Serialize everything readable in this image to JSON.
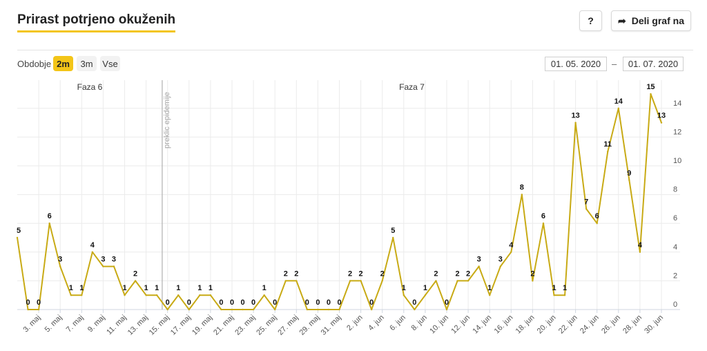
{
  "header": {
    "title": "Prirast potrjeno okuženih",
    "help_label": "?",
    "share_label": "Deli graf na"
  },
  "controls": {
    "period_label": "Obdobje",
    "ranges": [
      "2m",
      "3m",
      "Vse"
    ],
    "active_range": "2m",
    "date_from": "01. 05. 2020",
    "date_separator": "–",
    "date_to": "01. 07. 2020"
  },
  "colors": {
    "series": "#c8aa14",
    "accent": "#f3c518",
    "grid": "#ebebeb",
    "annotation_line": "#b0b0b0"
  },
  "chart_data": {
    "type": "line",
    "title": "",
    "xlabel": "",
    "ylabel": "",
    "ylim": [
      0,
      16
    ],
    "yticks": [
      0,
      2,
      4,
      6,
      8,
      10,
      12,
      14
    ],
    "grid": true,
    "legend": "none",
    "x_tick_labels": [
      "3. maj",
      "5. maj",
      "7. maj",
      "9. maj",
      "11. maj",
      "13. maj",
      "15. maj",
      "17. maj",
      "19. maj",
      "21. maj",
      "23. maj",
      "25. maj",
      "27. maj",
      "29. maj",
      "31. maj",
      "2. jun",
      "4. jun",
      "6. jun",
      "8. jun",
      "10. jun",
      "12. jun",
      "14. jun",
      "16. jun",
      "18. jun",
      "20. jun",
      "22. jun",
      "24. jun",
      "26. jun",
      "28. jun",
      "30. jun"
    ],
    "series": [
      {
        "x_start": "2020-05-01",
        "values": [
          5,
          0,
          0,
          6,
          3,
          1,
          1,
          4,
          3,
          3,
          1,
          2,
          1,
          1,
          0,
          1,
          0,
          1,
          1,
          0,
          0,
          0,
          0,
          1,
          0,
          2,
          2,
          0,
          0,
          0,
          0,
          2,
          2,
          0,
          2,
          5,
          1,
          0,
          1,
          2,
          0,
          2,
          2,
          3,
          1,
          3,
          4,
          8,
          2,
          6,
          1,
          1,
          13,
          7,
          6,
          11,
          14,
          9,
          4,
          15,
          13
        ]
      }
    ],
    "annotations": [
      {
        "type": "phase",
        "label": "Faza 6",
        "start": "2020-05-01"
      },
      {
        "type": "phase",
        "label": "Faza 7",
        "start": "2020-05-15"
      },
      {
        "type": "vertical-line",
        "label": "preklic epidemije",
        "date": "2020-05-15"
      }
    ]
  }
}
